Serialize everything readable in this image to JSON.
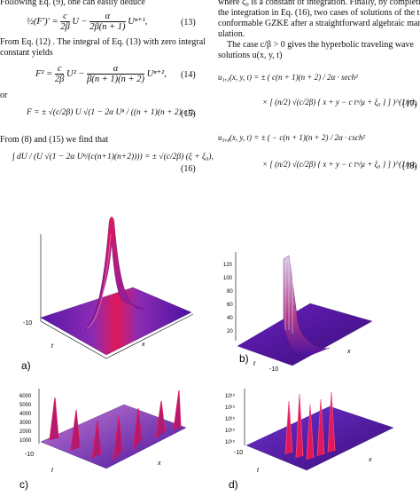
{
  "left_column": {
    "intro_line": "Following Eq. (9), one can easily deduce",
    "eq13": {
      "lhs": "½(F′)′ = ",
      "t1_num": "c",
      "t1_den": "2β",
      "t1_var": "U − ",
      "t2_num": "α",
      "t2_den": "2β(n + 1)",
      "t2_var": "Uⁿ⁺¹,",
      "number": "(13)"
    },
    "text_after_13": "From Eq. (12) . The integral of Eq. (13) with zero integral",
    "text_after_13b": "constant yields",
    "eq14": {
      "lhs": "F² = ",
      "t1_num": "c",
      "t1_den": "2β",
      "t1_var": "U² − ",
      "t2_num": "α",
      "t2_den": "β(n + 1)(n + 2)",
      "t2_var": "Uⁿ⁺²,",
      "number": "(14)"
    },
    "or_word": "or",
    "eq15": {
      "lhs": "F = ± ",
      "body": "√(c/2β) U √(1 − 2α Uⁿ / ((n + 1)(n + 2) c)).",
      "number": "(15)"
    },
    "text_before_16": "From (8) and (15) we find that",
    "eq16": {
      "body": "∫ dU / (U √(1 − 2α Uⁿ/(c(n+1)(n+2)))) = ± √(c/2β) (ξ + ξ₀),",
      "number": "(16)"
    }
  },
  "right_column": {
    "line1": "where ξ₀ is a constant of integration. Finally, by completing",
    "line2": "the integration in Eq. (16), two cases of solutions of the time-",
    "line3": "conformable GZKE after a straightforward algebraic manip-",
    "line4": "ulation.",
    "line5": "The case c/β > 0 gives the hyperbolic traveling wave",
    "line6": "solutions u(x, y, t)",
    "eq17_a": "u₁,₂(x, y, t) = ± ( c(n + 1)(n + 2) / 2α · sech² ",
    "eq17_b": "× [ (n/2) √(c/2β) { x + y − c tᵘ/μ + ξ₀ } ] )^(1/n),",
    "eq17_number": "(17)",
    "eq18_a": "u₃,₄(x, y, t) = ± ( − c(n + 1)(n + 2) / 2α · csch² ",
    "eq18_b": "× [ (n/2) √(c/2β) { x + y − c tᵘ/μ + ξ₀ } ] )^(1/n),",
    "eq18_number": "(18)"
  },
  "figures": {
    "a": {
      "label": "a)",
      "axis_min": "-10",
      "axis_t": "t",
      "axis_x": "x",
      "z_ticks": []
    },
    "b": {
      "label": "b)",
      "axis_min": "-10",
      "axis_t": "t",
      "axis_x": "x",
      "z_ticks": [
        "120",
        "100",
        "80",
        "60",
        "40",
        "20"
      ]
    },
    "c": {
      "label": "c)",
      "axis_min": "-10",
      "axis_t": "t",
      "axis_x": "x",
      "z_ticks": [
        "6000",
        "5000",
        "4000",
        "3000",
        "2000",
        "1000"
      ]
    },
    "d": {
      "label": "d)",
      "axis_min": "-10",
      "axis_t": "t",
      "axis_x": "x",
      "z_ticks": [
        "10¹⁵",
        "10¹⁵",
        "10¹⁵",
        "10¹⁵",
        "10¹⁵"
      ]
    }
  },
  "colors": {
    "surface_dark": "#3a0d7a",
    "surface_mid": "#a03aa8",
    "surface_peak": "#e0185a",
    "surface_edge": "#b08cf0"
  }
}
